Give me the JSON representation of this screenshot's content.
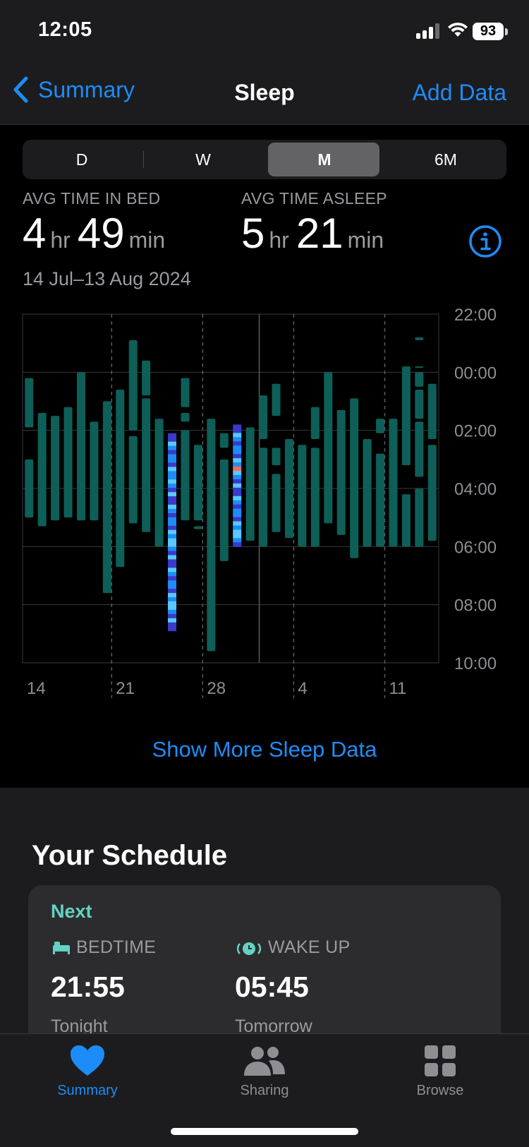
{
  "status_bar": {
    "time": "12:05",
    "battery": "93"
  },
  "nav": {
    "back_label": "Summary",
    "title": "Sleep",
    "action_label": "Add Data"
  },
  "segments": {
    "d": "D",
    "w": "W",
    "m": "M",
    "six_m": "6M",
    "selected": "M"
  },
  "stats": {
    "in_bed_label": "AVG TIME IN BED",
    "in_bed_hours": "4",
    "hr_unit": "hr",
    "in_bed_minutes": "49",
    "min_unit": "min",
    "asleep_label": "AVG TIME ASLEEP",
    "asleep_hours": "5",
    "asleep_minutes": "21",
    "date_range": "14 Jul–13 Aug 2024"
  },
  "chart_data": {
    "type": "bar",
    "y_ticks": [
      "22:00",
      "00:00",
      "02:00",
      "04:00",
      "06:00",
      "08:00",
      "10:00"
    ],
    "x_ticks": [
      "14",
      "21",
      "28",
      "4",
      "11"
    ],
    "colors": {
      "in_bed": "#0d5f58",
      "stages": [
        "#1e8cf7",
        "#3a3acb",
        "#5ac8fa",
        "#ff6b57"
      ]
    },
    "nights": [
      {
        "day": "14",
        "segments": [
          [
            0.2,
            1.9
          ],
          [
            3.0,
            5.0
          ]
        ]
      },
      {
        "day": "15",
        "segments": [
          [
            1.4,
            5.3
          ]
        ]
      },
      {
        "day": "16",
        "segments": [
          [
            1.5,
            5.1
          ]
        ]
      },
      {
        "day": "17",
        "segments": [
          [
            1.2,
            5.0
          ]
        ]
      },
      {
        "day": "18",
        "segments": [
          [
            0.0,
            5.1
          ]
        ]
      },
      {
        "day": "19",
        "segments": [
          [
            1.7,
            5.1
          ]
        ]
      },
      {
        "day": "20",
        "segments": [
          [
            1.0,
            7.6
          ]
        ]
      },
      {
        "day": "21",
        "segments": [
          [
            0.6,
            6.7
          ]
        ]
      },
      {
        "day": "22",
        "segments": [
          [
            -1.1,
            2.0
          ],
          [
            2.2,
            5.2
          ]
        ]
      },
      {
        "day": "23",
        "segments": [
          [
            -0.4,
            0.8
          ],
          [
            0.9,
            5.5
          ]
        ]
      },
      {
        "day": "24",
        "segments": [
          [
            1.6,
            6.0
          ]
        ]
      },
      {
        "day": "25",
        "segments": [
          [
            2.1,
            8.9
          ]
        ],
        "detailed": true
      },
      {
        "day": "26",
        "segments": [
          [
            0.2,
            1.2
          ],
          [
            1.4,
            1.7
          ],
          [
            2.0,
            5.1
          ]
        ]
      },
      {
        "day": "27",
        "segments": [
          [
            2.5,
            5.1
          ],
          [
            5.3,
            5.4
          ]
        ]
      },
      {
        "day": "28",
        "segments": [
          [
            1.6,
            9.6
          ]
        ]
      },
      {
        "day": "29",
        "segments": [
          [
            2.1,
            2.6
          ],
          [
            3.0,
            6.5
          ]
        ]
      },
      {
        "day": "30",
        "segments": [
          [
            1.8,
            6.0
          ]
        ],
        "detailed": true
      },
      {
        "day": "31",
        "segments": [
          [
            1.9,
            5.8
          ]
        ]
      },
      {
        "day": "1",
        "segments": [
          [
            0.8,
            2.3
          ],
          [
            2.6,
            6.0
          ]
        ]
      },
      {
        "day": "2",
        "segments": [
          [
            0.4,
            1.5
          ],
          [
            2.6,
            3.2
          ],
          [
            3.5,
            5.5
          ]
        ]
      },
      {
        "day": "3",
        "segments": [
          [
            2.3,
            5.7
          ]
        ]
      },
      {
        "day": "4",
        "segments": [
          [
            2.5,
            6.0
          ]
        ]
      },
      {
        "day": "5",
        "segments": [
          [
            1.2,
            2.3
          ],
          [
            2.6,
            6.0
          ]
        ]
      },
      {
        "day": "6",
        "segments": [
          [
            0.0,
            5.2
          ]
        ]
      },
      {
        "day": "7",
        "segments": [
          [
            1.3,
            5.6
          ]
        ]
      },
      {
        "day": "8",
        "segments": [
          [
            0.9,
            6.4
          ]
        ]
      },
      {
        "day": "9",
        "segments": [
          [
            2.3,
            6.0
          ]
        ]
      },
      {
        "day": "10",
        "segments": [
          [
            1.6,
            2.1
          ],
          [
            2.8,
            6.0
          ]
        ]
      },
      {
        "day": "11",
        "segments": [
          [
            1.6,
            6.0
          ]
        ]
      },
      {
        "day": "12",
        "segments": [
          [
            -0.2,
            3.2
          ],
          [
            4.2,
            6.0
          ]
        ]
      },
      {
        "day": "13",
        "segments": [
          [
            -1.2,
            -1.1
          ],
          [
            -0.2,
            -0.2
          ],
          [
            0.0,
            0.5
          ],
          [
            0.6,
            1.6
          ],
          [
            1.7,
            3.6
          ],
          [
            4.0,
            6.0
          ]
        ]
      },
      {
        "day": "14b",
        "segments": [
          [
            0.4,
            2.3
          ],
          [
            2.5,
            5.8
          ]
        ]
      }
    ]
  },
  "show_more": "Show More Sleep Data",
  "schedule": {
    "title": "Your Schedule",
    "next": "Next",
    "bedtime_label": "BEDTIME",
    "bedtime_time": "21:55",
    "bedtime_day": "Tonight",
    "wake_label": "WAKE UP",
    "wake_time": "05:45",
    "wake_day": "Tomorrow"
  },
  "tabs": {
    "summary": "Summary",
    "sharing": "Sharing",
    "browse": "Browse"
  }
}
